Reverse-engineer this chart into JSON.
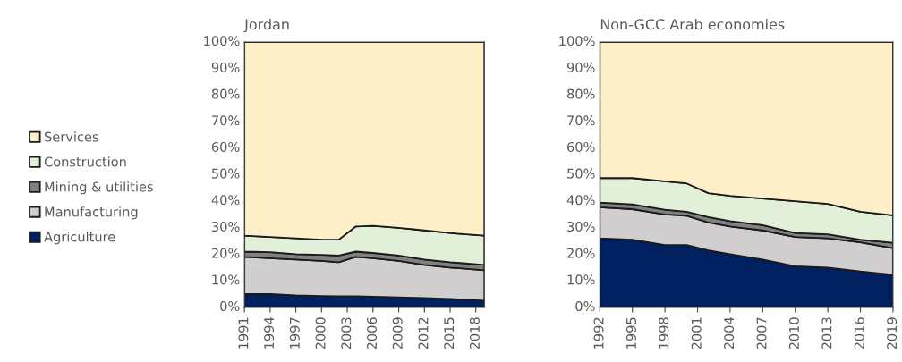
{
  "chart_data": [
    {
      "type": "area",
      "stacked": true,
      "title": "Jordan",
      "x": [
        1991,
        1994,
        1997,
        2000,
        2002,
        2004,
        2006,
        2009,
        2012,
        2015,
        2019
      ],
      "xlim": [
        1991,
        2019
      ],
      "xticks": [
        1991,
        1994,
        1997,
        2000,
        2003,
        2006,
        2009,
        2012,
        2015,
        2018
      ],
      "ylim": [
        0,
        100
      ],
      "yticks": [
        {
          "value": 0,
          "label": "0%"
        },
        {
          "value": 10,
          "label": "10%"
        },
        {
          "value": 20,
          "label": "20%"
        },
        {
          "value": 30,
          "label": "30%"
        },
        {
          "value": 40,
          "label": "40%"
        },
        {
          "value": 50,
          "label": "50%"
        },
        {
          "value": 60,
          "label": "60%"
        },
        {
          "value": 70,
          "label": "70%"
        },
        {
          "value": 80,
          "label": "80%"
        },
        {
          "value": 90,
          "label": "90%"
        },
        {
          "value": 100,
          "label": "100%"
        }
      ],
      "grid": false,
      "legend": "left",
      "series": [
        {
          "name": "Agriculture",
          "color": "#002060",
          "values": [
            5,
            5,
            4.5,
            4.3,
            4.2,
            4.2,
            4.0,
            3.8,
            3.5,
            3.2,
            2.5
          ]
        },
        {
          "name": "Manufacturing",
          "color": "#d0cece",
          "values": [
            14,
            13.5,
            13.5,
            13.2,
            12.8,
            14.8,
            14.5,
            13.7,
            12.5,
            11.8,
            11.5
          ]
        },
        {
          "name": "Mining & utilities",
          "color": "#808080",
          "values": [
            2,
            2.3,
            2,
            2.3,
            2.5,
            2,
            2,
            2,
            2,
            2,
            2
          ]
        },
        {
          "name": "Construction",
          "color": "#e2f0d9",
          "values": [
            6,
            5.7,
            6,
            5.7,
            6,
            9.5,
            10.2,
            10.5,
            11,
            11,
            11
          ]
        },
        {
          "name": "Services",
          "color": "#fdf0c8",
          "values": [
            73,
            73.5,
            74,
            74.5,
            74.5,
            69.5,
            69.3,
            70,
            71,
            72,
            73
          ]
        }
      ]
    },
    {
      "type": "area",
      "stacked": true,
      "title": "Non-GCC Arab economies",
      "x": [
        1992,
        1995,
        1998,
        2000,
        2002,
        2004,
        2007,
        2010,
        2013,
        2016,
        2019
      ],
      "xlim": [
        1992,
        2019
      ],
      "xticks": [
        1992,
        1995,
        1998,
        2001,
        2004,
        2007,
        2010,
        2013,
        2016,
        2019
      ],
      "ylim": [
        0,
        100
      ],
      "yticks": [
        {
          "value": 0,
          "label": "0%"
        },
        {
          "value": 10,
          "label": "10%"
        },
        {
          "value": 20,
          "label": "20%"
        },
        {
          "value": 30,
          "label": "30%"
        },
        {
          "value": 40,
          "label": "40%"
        },
        {
          "value": 50,
          "label": "50%"
        },
        {
          "value": 60,
          "label": "60%"
        },
        {
          "value": 70,
          "label": "70%"
        },
        {
          "value": 80,
          "label": "80%"
        },
        {
          "value": 90,
          "label": "90%"
        },
        {
          "value": 100,
          "label": "100%"
        }
      ],
      "grid": false,
      "series": [
        {
          "color": "#002060",
          "values": [
            26,
            25.5,
            23.5,
            23.5,
            21.5,
            20,
            18,
            15.5,
            15,
            13.5,
            12.3
          ]
        },
        {
          "color": "#d0cece",
          "values": [
            11.7,
            11.5,
            11.5,
            11,
            10.5,
            10.5,
            11,
            11,
            11,
            11,
            10
          ]
        },
        {
          "color": "#808080",
          "values": [
            1.8,
            1.8,
            1.8,
            1.5,
            2,
            2,
            2,
            1.5,
            1.5,
            1,
            2
          ]
        },
        {
          "color": "#e2f0d9",
          "values": [
            9.2,
            9.9,
            10.7,
            10.7,
            9,
            9.5,
            10,
            12,
            11.5,
            10.5,
            10.4
          ]
        },
        {
          "color": "#fdf0c8",
          "values": [
            51.3,
            51.3,
            52.5,
            53.3,
            57,
            58,
            59,
            60,
            61,
            64,
            65.3
          ]
        }
      ]
    }
  ]
}
